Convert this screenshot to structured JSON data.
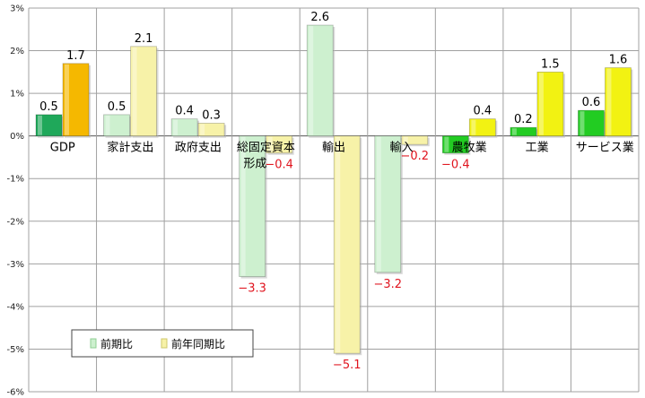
{
  "chart_data": {
    "type": "bar",
    "ylim": [
      -6,
      3
    ],
    "yticks": [
      3,
      2,
      1,
      0,
      -1,
      -2,
      -3,
      -4,
      -5,
      -6
    ],
    "ytick_labels": [
      "3%",
      "2%",
      "1%",
      "0%",
      "-1%",
      "-2%",
      "-3%",
      "-4%",
      "-5%",
      "-6%"
    ],
    "grid": true,
    "legend_position": "bottom-left",
    "categories": [
      "GDP",
      "家計支出",
      "政府支出",
      "総固定資本形成",
      "輸出",
      "輸入",
      "農牧業",
      "工業",
      "サービス業"
    ],
    "series": [
      {
        "name": "前期比",
        "values": [
          0.5,
          0.5,
          0.4,
          -3.3,
          2.6,
          -3.2,
          -0.4,
          0.2,
          0.6
        ],
        "labels": [
          "0.5",
          "0.5",
          "0.4",
          "−3.3",
          "2.6",
          "−3.2",
          "−0.4",
          "0.2",
          "0.6"
        ],
        "colors": [
          "#1fa85a",
          "#cdf0cf",
          "#cdf0cf",
          "#cdf0cf",
          "#cdf0cf",
          "#cdf0cf",
          "#22cc22",
          "#22cc22",
          "#22cc22"
        ]
      },
      {
        "name": "前年同期比",
        "values": [
          1.7,
          2.1,
          0.3,
          -0.4,
          -5.1,
          -0.2,
          0.4,
          1.5,
          1.6
        ],
        "labels": [
          "1.7",
          "2.1",
          "0.3",
          "−0.4",
          "−5.1",
          "−0.2",
          "0.4",
          "1.5",
          "1.6"
        ],
        "colors": [
          "#f5b800",
          "#f7f2a8",
          "#f7f2a8",
          "#f7f2a8",
          "#f7f2a8",
          "#f7f2a8",
          "#f2f212",
          "#f2f212",
          "#f2f212"
        ]
      }
    ],
    "colors": {
      "negative_label": "#e0141e",
      "grid": "#a0a0a0",
      "legend_swatch_1": "#cdf0cf",
      "legend_swatch_2": "#f7f2a8"
    }
  }
}
